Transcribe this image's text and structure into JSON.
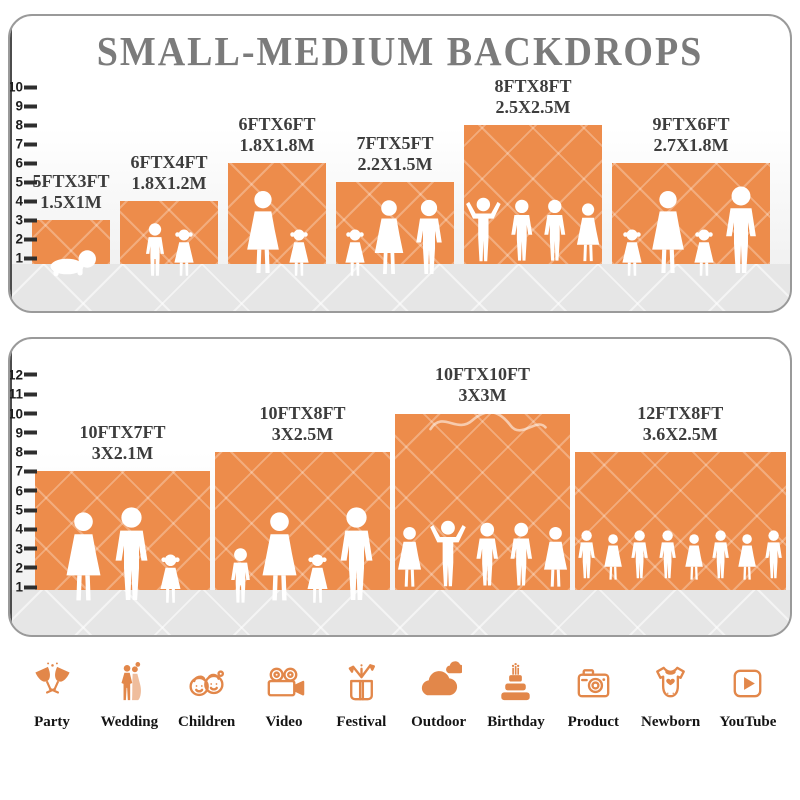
{
  "title": "SMALL-MEDIUM BACKDROPS",
  "colors": {
    "bar_orange": "#ED8C4B",
    "icon_orange": "#E2874A",
    "title_gray": "#7B7B7B",
    "label_dark": "#3D3D3D",
    "ground_gray": "#E6E6E6"
  },
  "chart_data": [
    {
      "type": "bar",
      "panel": "small-medium",
      "title": "SMALL-MEDIUM BACKDROPS",
      "ylabel": "",
      "xlabel": "",
      "ylim": [
        0,
        10
      ],
      "yticks": [
        1,
        2,
        3,
        4,
        5,
        6,
        7,
        8,
        9,
        10
      ],
      "grid": false,
      "legend": "none",
      "bars": [
        {
          "size_ft": "5FTX3FT",
          "size_m": "1.5X1M",
          "width_ft": 5,
          "height_ft": 3,
          "people": [
            "baby"
          ]
        },
        {
          "size_ft": "6FTX4FT",
          "size_m": "1.8X1.2M",
          "width_ft": 6,
          "height_ft": 4,
          "people": [
            "boy",
            "girl"
          ]
        },
        {
          "size_ft": "6FTX6FT",
          "size_m": "1.8X1.8M",
          "width_ft": 6,
          "height_ft": 6,
          "people": [
            "woman",
            "girl"
          ]
        },
        {
          "size_ft": "7FTX5FT",
          "size_m": "2.2X1.5M",
          "width_ft": 7,
          "height_ft": 5,
          "people": [
            "girl",
            "woman",
            "man"
          ]
        },
        {
          "size_ft": "8FTX8FT",
          "size_m": "2.5X2.5M",
          "width_ft": 8,
          "height_ft": 8,
          "people": [
            "man-up",
            "man",
            "man",
            "woman"
          ]
        },
        {
          "size_ft": "9FTX6FT",
          "size_m": "2.7X1.8M",
          "width_ft": 9,
          "height_ft": 6,
          "people": [
            "girl",
            "woman",
            "girl",
            "man"
          ]
        }
      ]
    },
    {
      "type": "bar",
      "panel": "medium-large",
      "title": "",
      "ylabel": "",
      "xlabel": "",
      "ylim": [
        0,
        12
      ],
      "yticks": [
        1,
        2,
        3,
        4,
        5,
        6,
        7,
        8,
        9,
        10,
        11,
        12
      ],
      "grid": false,
      "legend": "none",
      "bars": [
        {
          "size_ft": "10FTX7FT",
          "size_m": "3X2.1M",
          "width_ft": 10,
          "height_ft": 7,
          "people": [
            "woman",
            "man",
            "girl"
          ]
        },
        {
          "size_ft": "10FTX8FT",
          "size_m": "3X2.5M",
          "width_ft": 10,
          "height_ft": 8,
          "people": [
            "boy",
            "woman",
            "girl",
            "man"
          ]
        },
        {
          "size_ft": "10FTX10FT",
          "size_m": "3X3M",
          "width_ft": 10,
          "height_ft": 10,
          "people": [
            "woman",
            "man-up",
            "man",
            "man",
            "woman"
          ],
          "has_watermark_scribble": true
        },
        {
          "size_ft": "12FTX8FT",
          "size_m": "3.6X2.5M",
          "width_ft": 12,
          "height_ft": 8,
          "people": [
            "man",
            "woman",
            "man",
            "man",
            "woman",
            "man",
            "woman",
            "man"
          ]
        }
      ]
    }
  ],
  "categories": [
    {
      "label": "Party",
      "icon": "party-icon"
    },
    {
      "label": "Wedding",
      "icon": "wedding-icon"
    },
    {
      "label": "Children",
      "icon": "children-icon"
    },
    {
      "label": "Video",
      "icon": "video-icon"
    },
    {
      "label": "Festival",
      "icon": "festival-icon"
    },
    {
      "label": "Outdoor",
      "icon": "outdoor-icon"
    },
    {
      "label": "Birthday",
      "icon": "birthday-icon"
    },
    {
      "label": "Product",
      "icon": "product-icon"
    },
    {
      "label": "Newborn",
      "icon": "newborn-icon"
    },
    {
      "label": "YouTube",
      "icon": "youtube-icon"
    }
  ]
}
